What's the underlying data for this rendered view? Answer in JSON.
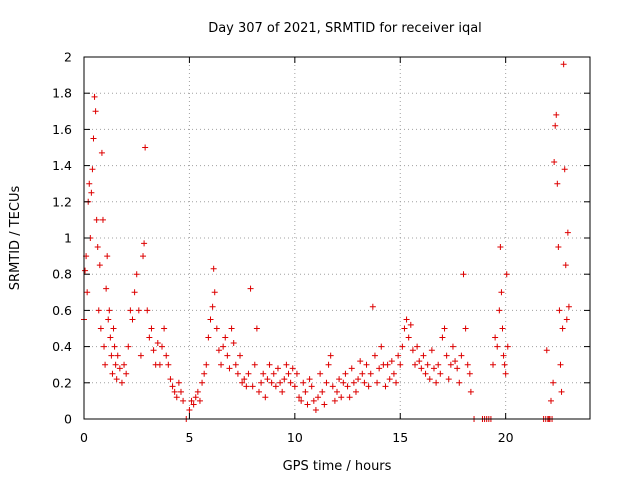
{
  "chart_data": {
    "type": "scatter",
    "title": "Day 307 of 2021, SRMTID for receiver iqal",
    "xlabel": "GPS time / hours",
    "ylabel": "SRMTID / TECUs",
    "xlim": [
      0,
      24
    ],
    "ylim": [
      0,
      2
    ],
    "grid": true,
    "grid_style": "dotted",
    "legend": "none",
    "x_ticks": [
      0,
      5,
      10,
      15,
      20
    ],
    "x_tick_labels": [
      "0",
      "5",
      "10",
      "15",
      "20"
    ],
    "y_ticks": [
      0,
      0.2,
      0.4,
      0.6,
      0.8,
      1,
      1.2,
      1.4,
      1.6,
      1.8,
      2
    ],
    "y_tick_labels": [
      "0",
      "0.2",
      "0.4",
      "0.6",
      "0.8",
      "1",
      "1.2",
      "1.4",
      "1.6",
      "1.8",
      "2"
    ],
    "series": [
      {
        "name": "SRMTID",
        "marker": "+",
        "color": "#dd0000",
        "points": [
          [
            0.0,
            0.55
          ],
          [
            0.05,
            0.82
          ],
          [
            0.1,
            0.9
          ],
          [
            0.15,
            0.7
          ],
          [
            0.2,
            1.2
          ],
          [
            0.25,
            1.3
          ],
          [
            0.3,
            1.0
          ],
          [
            0.35,
            1.25
          ],
          [
            0.4,
            1.38
          ],
          [
            0.45,
            1.55
          ],
          [
            0.5,
            1.78
          ],
          [
            0.55,
            1.7
          ],
          [
            0.6,
            1.1
          ],
          [
            0.65,
            0.95
          ],
          [
            0.7,
            0.6
          ],
          [
            0.75,
            0.85
          ],
          [
            0.8,
            0.5
          ],
          [
            0.85,
            1.47
          ],
          [
            0.9,
            1.1
          ],
          [
            0.95,
            0.4
          ],
          [
            1.0,
            0.3
          ],
          [
            1.05,
            0.72
          ],
          [
            1.1,
            0.9
          ],
          [
            1.15,
            0.55
          ],
          [
            1.2,
            0.6
          ],
          [
            1.25,
            0.45
          ],
          [
            1.3,
            0.35
          ],
          [
            1.35,
            0.25
          ],
          [
            1.4,
            0.5
          ],
          [
            1.45,
            0.4
          ],
          [
            1.5,
            0.3
          ],
          [
            1.55,
            0.22
          ],
          [
            1.6,
            0.35
          ],
          [
            1.7,
            0.28
          ],
          [
            1.8,
            0.2
          ],
          [
            1.9,
            0.3
          ],
          [
            2.0,
            0.25
          ],
          [
            2.1,
            0.4
          ],
          [
            2.2,
            0.6
          ],
          [
            2.3,
            0.55
          ],
          [
            2.4,
            0.7
          ],
          [
            2.5,
            0.8
          ],
          [
            2.6,
            0.6
          ],
          [
            2.7,
            0.35
          ],
          [
            2.8,
            0.9
          ],
          [
            2.85,
            0.97
          ],
          [
            2.9,
            1.5
          ],
          [
            3.0,
            0.6
          ],
          [
            3.1,
            0.45
          ],
          [
            3.2,
            0.5
          ],
          [
            3.3,
            0.38
          ],
          [
            3.4,
            0.3
          ],
          [
            3.5,
            0.42
          ],
          [
            3.6,
            0.3
          ],
          [
            3.7,
            0.4
          ],
          [
            3.8,
            0.5
          ],
          [
            3.9,
            0.35
          ],
          [
            4.0,
            0.3
          ],
          [
            4.1,
            0.22
          ],
          [
            4.2,
            0.18
          ],
          [
            4.3,
            0.15
          ],
          [
            4.4,
            0.12
          ],
          [
            4.5,
            0.2
          ],
          [
            4.6,
            0.15
          ],
          [
            4.7,
            0.1
          ],
          [
            4.85,
            0.0
          ],
          [
            5.0,
            0.05
          ],
          [
            5.1,
            0.1
          ],
          [
            5.2,
            0.08
          ],
          [
            5.3,
            0.12
          ],
          [
            5.4,
            0.15
          ],
          [
            5.5,
            0.1
          ],
          [
            5.6,
            0.2
          ],
          [
            5.7,
            0.25
          ],
          [
            5.8,
            0.3
          ],
          [
            5.9,
            0.45
          ],
          [
            6.0,
            0.55
          ],
          [
            6.1,
            0.62
          ],
          [
            6.15,
            0.83
          ],
          [
            6.2,
            0.7
          ],
          [
            6.3,
            0.5
          ],
          [
            6.4,
            0.38
          ],
          [
            6.5,
            0.3
          ],
          [
            6.6,
            0.4
          ],
          [
            6.7,
            0.45
          ],
          [
            6.8,
            0.35
          ],
          [
            6.9,
            0.28
          ],
          [
            7.0,
            0.5
          ],
          [
            7.1,
            0.42
          ],
          [
            7.2,
            0.3
          ],
          [
            7.3,
            0.25
          ],
          [
            7.4,
            0.35
          ],
          [
            7.5,
            0.2
          ],
          [
            7.6,
            0.22
          ],
          [
            7.7,
            0.18
          ],
          [
            7.8,
            0.25
          ],
          [
            7.9,
            0.72
          ],
          [
            8.0,
            0.18
          ],
          [
            8.1,
            0.3
          ],
          [
            8.2,
            0.5
          ],
          [
            8.3,
            0.15
          ],
          [
            8.4,
            0.2
          ],
          [
            8.5,
            0.25
          ],
          [
            8.6,
            0.12
          ],
          [
            8.7,
            0.22
          ],
          [
            8.8,
            0.3
          ],
          [
            8.9,
            0.2
          ],
          [
            9.0,
            0.25
          ],
          [
            9.1,
            0.18
          ],
          [
            9.2,
            0.28
          ],
          [
            9.3,
            0.2
          ],
          [
            9.4,
            0.15
          ],
          [
            9.5,
            0.22
          ],
          [
            9.6,
            0.3
          ],
          [
            9.7,
            0.25
          ],
          [
            9.8,
            0.2
          ],
          [
            9.9,
            0.28
          ],
          [
            10.0,
            0.18
          ],
          [
            10.1,
            0.25
          ],
          [
            10.2,
            0.12
          ],
          [
            10.3,
            0.1
          ],
          [
            10.4,
            0.2
          ],
          [
            10.5,
            0.15
          ],
          [
            10.6,
            0.08
          ],
          [
            10.7,
            0.22
          ],
          [
            10.8,
            0.18
          ],
          [
            10.9,
            0.1
          ],
          [
            11.0,
            0.05
          ],
          [
            11.1,
            0.12
          ],
          [
            11.2,
            0.25
          ],
          [
            11.3,
            0.15
          ],
          [
            11.4,
            0.08
          ],
          [
            11.5,
            0.2
          ],
          [
            11.6,
            0.3
          ],
          [
            11.7,
            0.35
          ],
          [
            11.8,
            0.18
          ],
          [
            11.9,
            0.1
          ],
          [
            12.0,
            0.15
          ],
          [
            12.1,
            0.22
          ],
          [
            12.2,
            0.12
          ],
          [
            12.3,
            0.2
          ],
          [
            12.4,
            0.25
          ],
          [
            12.5,
            0.18
          ],
          [
            12.6,
            0.12
          ],
          [
            12.7,
            0.28
          ],
          [
            12.8,
            0.2
          ],
          [
            12.9,
            0.15
          ],
          [
            13.0,
            0.22
          ],
          [
            13.1,
            0.32
          ],
          [
            13.2,
            0.25
          ],
          [
            13.3,
            0.2
          ],
          [
            13.4,
            0.3
          ],
          [
            13.5,
            0.18
          ],
          [
            13.6,
            0.25
          ],
          [
            13.7,
            0.62
          ],
          [
            13.8,
            0.35
          ],
          [
            13.9,
            0.2
          ],
          [
            14.0,
            0.28
          ],
          [
            14.1,
            0.4
          ],
          [
            14.2,
            0.3
          ],
          [
            14.3,
            0.18
          ],
          [
            14.4,
            0.3
          ],
          [
            14.5,
            0.22
          ],
          [
            14.6,
            0.32
          ],
          [
            14.7,
            0.25
          ],
          [
            14.8,
            0.2
          ],
          [
            14.9,
            0.35
          ],
          [
            15.0,
            0.3
          ],
          [
            15.1,
            0.4
          ],
          [
            15.2,
            0.5
          ],
          [
            15.3,
            0.55
          ],
          [
            15.4,
            0.45
          ],
          [
            15.5,
            0.52
          ],
          [
            15.6,
            0.38
          ],
          [
            15.7,
            0.3
          ],
          [
            15.8,
            0.4
          ],
          [
            15.9,
            0.32
          ],
          [
            16.0,
            0.28
          ],
          [
            16.1,
            0.35
          ],
          [
            16.2,
            0.25
          ],
          [
            16.3,
            0.3
          ],
          [
            16.4,
            0.22
          ],
          [
            16.5,
            0.38
          ],
          [
            16.6,
            0.28
          ],
          [
            16.7,
            0.2
          ],
          [
            16.8,
            0.3
          ],
          [
            16.9,
            0.25
          ],
          [
            17.0,
            0.45
          ],
          [
            17.1,
            0.5
          ],
          [
            17.2,
            0.35
          ],
          [
            17.3,
            0.22
          ],
          [
            17.4,
            0.3
          ],
          [
            17.5,
            0.4
          ],
          [
            17.6,
            0.32
          ],
          [
            17.7,
            0.28
          ],
          [
            17.8,
            0.2
          ],
          [
            17.9,
            0.35
          ],
          [
            18.0,
            0.8
          ],
          [
            18.1,
            0.5
          ],
          [
            18.2,
            0.3
          ],
          [
            18.3,
            0.25
          ],
          [
            18.35,
            0.15
          ],
          [
            18.5,
            0.0
          ],
          [
            18.9,
            0.0
          ],
          [
            19.0,
            0.0
          ],
          [
            19.1,
            0.0
          ],
          [
            19.2,
            0.0
          ],
          [
            19.3,
            0.0
          ],
          [
            19.4,
            0.3
          ],
          [
            19.5,
            0.45
          ],
          [
            19.6,
            0.4
          ],
          [
            19.7,
            0.6
          ],
          [
            19.75,
            0.95
          ],
          [
            19.8,
            0.7
          ],
          [
            19.85,
            0.5
          ],
          [
            19.9,
            0.35
          ],
          [
            19.95,
            0.3
          ],
          [
            20.0,
            0.25
          ],
          [
            20.05,
            0.8
          ],
          [
            20.1,
            0.4
          ],
          [
            21.8,
            0.0
          ],
          [
            21.9,
            0.0
          ],
          [
            21.95,
            0.38
          ],
          [
            22.0,
            0.0
          ],
          [
            22.05,
            0.0
          ],
          [
            22.1,
            0.0
          ],
          [
            22.15,
            0.1
          ],
          [
            22.2,
            0.0
          ],
          [
            22.25,
            0.2
          ],
          [
            22.3,
            1.42
          ],
          [
            22.35,
            1.62
          ],
          [
            22.4,
            1.68
          ],
          [
            22.45,
            1.3
          ],
          [
            22.5,
            0.95
          ],
          [
            22.55,
            0.6
          ],
          [
            22.6,
            0.3
          ],
          [
            22.65,
            0.15
          ],
          [
            22.7,
            0.5
          ],
          [
            22.75,
            1.96
          ],
          [
            22.8,
            1.38
          ],
          [
            22.85,
            0.85
          ],
          [
            22.9,
            0.55
          ],
          [
            22.95,
            1.03
          ],
          [
            23.0,
            0.62
          ]
        ]
      }
    ]
  }
}
